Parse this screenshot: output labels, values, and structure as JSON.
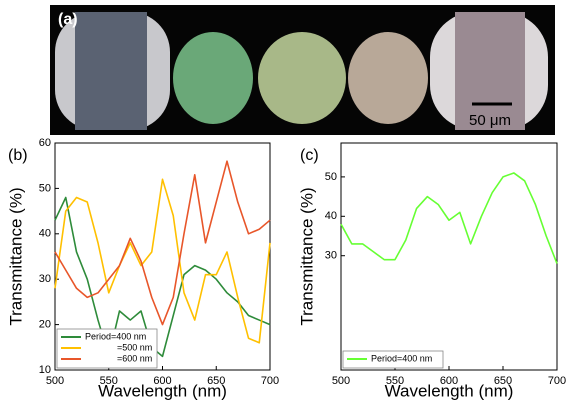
{
  "panel_a": {
    "label": "(a)",
    "scale_bar": "50 μm"
  },
  "chart_data": [
    {
      "type": "line",
      "panel_label": "(b)",
      "xlabel": "Wavelength (nm)",
      "ylabel": "Transmittance (%)",
      "x": [
        500,
        510,
        520,
        530,
        540,
        550,
        560,
        570,
        580,
        590,
        600,
        610,
        620,
        630,
        640,
        650,
        660,
        670,
        680,
        690,
        700
      ],
      "xlim": [
        500,
        700
      ],
      "xticks": [
        500,
        550,
        600,
        650,
        700
      ],
      "ylim": [
        10,
        60
      ],
      "yticks": [
        10,
        20,
        30,
        40,
        50,
        60
      ],
      "series": [
        {
          "name": "Period=400 nm",
          "color": "#2e8b3a",
          "values": [
            43,
            48,
            36,
            30,
            21,
            13,
            23,
            21,
            23,
            15,
            13,
            22,
            31,
            33,
            32,
            30,
            27,
            25,
            22,
            21,
            20
          ]
        },
        {
          "name": "=500 nm",
          "color": "#ffc000",
          "values": [
            28,
            45,
            48,
            47,
            38,
            27,
            33,
            38,
            33,
            36,
            52,
            44,
            27,
            21,
            31,
            31,
            36,
            26,
            17,
            16,
            38
          ]
        },
        {
          "name": "=600 nm",
          "color": "#e8562a",
          "values": [
            36,
            32,
            28,
            26,
            27,
            30,
            33,
            39,
            34,
            26,
            20,
            26,
            40,
            53,
            38,
            47,
            56,
            47,
            40,
            41,
            43
          ]
        }
      ]
    },
    {
      "type": "line",
      "panel_label": "(c)",
      "xlabel": "Wavelength (nm)",
      "ylabel": "Transmittance (%)",
      "x": [
        500,
        510,
        520,
        530,
        540,
        550,
        560,
        570,
        580,
        590,
        600,
        610,
        620,
        630,
        640,
        650,
        660,
        670,
        680,
        690,
        700
      ],
      "xlim": [
        500,
        700
      ],
      "xticks": [
        500,
        550,
        600,
        650,
        700
      ],
      "ylim": [
        1,
        58.6
      ],
      "yticks": [
        30,
        40,
        50
      ],
      "series": [
        {
          "name": "Period=400 nm",
          "color": "#66ff33",
          "values": [
            38,
            33,
            33,
            31,
            29,
            29,
            34,
            42,
            45,
            43,
            39,
            41,
            33,
            40,
            46,
            50,
            51,
            49,
            43,
            35,
            28
          ]
        }
      ]
    }
  ]
}
